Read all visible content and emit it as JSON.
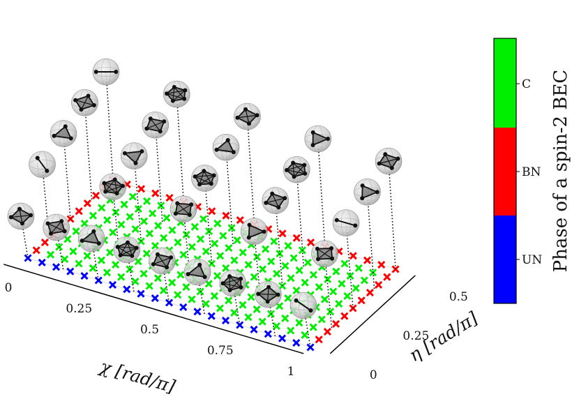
{
  "chart_data": {
    "type": "scatter",
    "subtype": "3d-phase-diagram",
    "x_axis": {
      "label": "χ [rad/π]",
      "ticks": [
        "0",
        "0.25",
        "0.5",
        "0.75",
        "1"
      ],
      "range": [
        0,
        1
      ]
    },
    "y_axis": {
      "label": "η [rad/π]",
      "ticks": [
        "0",
        "0.25",
        "0.5"
      ],
      "range": [
        0,
        0.5
      ]
    },
    "grid_points": {
      "x_count": 21,
      "y_count": 11
    },
    "phases": [
      {
        "label": "UN",
        "color": "#0000ff",
        "region": "η = 0 (front edge)"
      },
      {
        "label": "BN",
        "color": "#ff0000",
        "region": "χ = 1 edge and η = 0.5 back edge"
      },
      {
        "label": "C",
        "color": "#00ee00",
        "region": "interior"
      }
    ],
    "colorbar": {
      "title": "Phase of a spin-2 BEC",
      "labels": [
        "UN",
        "BN",
        "C"
      ]
    },
    "majorana_columns": [
      {
        "eta": 0,
        "chi": [
          0,
          0.125,
          0.25,
          0.375,
          0.5,
          0.625,
          0.75,
          0.875,
          1
        ]
      },
      {
        "eta": 0.125,
        "chi": [
          0,
          0.25,
          0.5,
          0.75,
          1
        ]
      },
      {
        "eta": 0.25,
        "chi": [
          0,
          0.25,
          0.5,
          0.75,
          1
        ]
      },
      {
        "eta": 0.375,
        "chi": [
          0,
          0.25,
          0.5,
          0.75,
          1
        ]
      },
      {
        "eta": 0.5,
        "chi": [
          0,
          0.25,
          0.5,
          0.75,
          1
        ]
      }
    ],
    "grid": true,
    "legend_placement": "right (colorbar)"
  }
}
